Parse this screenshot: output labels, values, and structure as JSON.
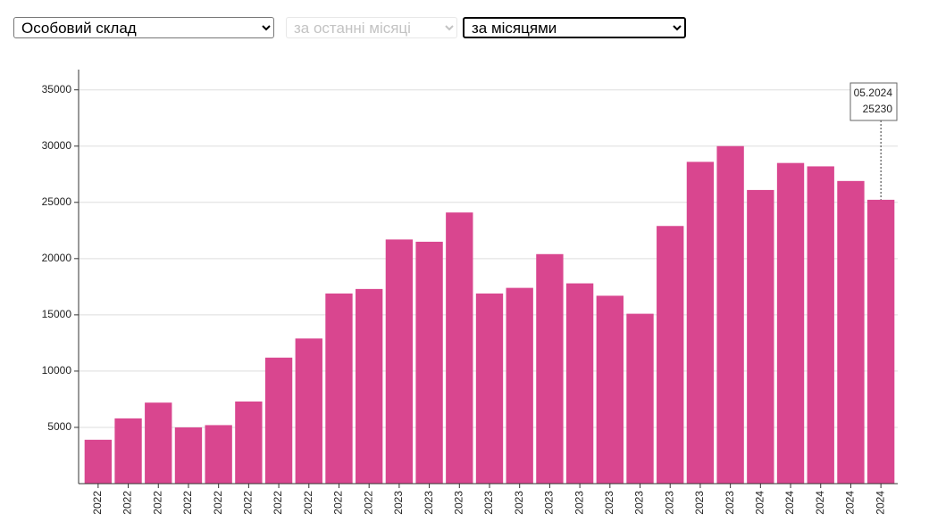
{
  "controls": [
    "Особовий склад",
    "за останні місяці",
    "за місяцями"
  ],
  "chart_data": {
    "type": "bar",
    "categories": [
      "2022",
      "2022",
      "2022",
      "2022",
      "2022",
      "2022",
      "2022",
      "2022",
      "2022",
      "2022",
      "2023",
      "2023",
      "2023",
      "2023",
      "2023",
      "2023",
      "2023",
      "2023",
      "2023",
      "2023",
      "2023",
      "2023",
      "2024",
      "2024",
      "2024",
      "2024",
      "2024"
    ],
    "values": [
      3900,
      5800,
      7200,
      5000,
      5200,
      7300,
      11200,
      12900,
      16900,
      17300,
      21700,
      21500,
      24100,
      16900,
      17400,
      20400,
      17800,
      16700,
      15100,
      22900,
      28600,
      30000,
      26100,
      28500,
      28200,
      26900,
      25230
    ],
    "color": "#d9468f",
    "ylim": [
      0,
      36800
    ],
    "yticks": [
      5000,
      10000,
      15000,
      20000,
      25000,
      30000,
      35000
    ],
    "grid": true,
    "tooltip_label": "05.2024"
  }
}
